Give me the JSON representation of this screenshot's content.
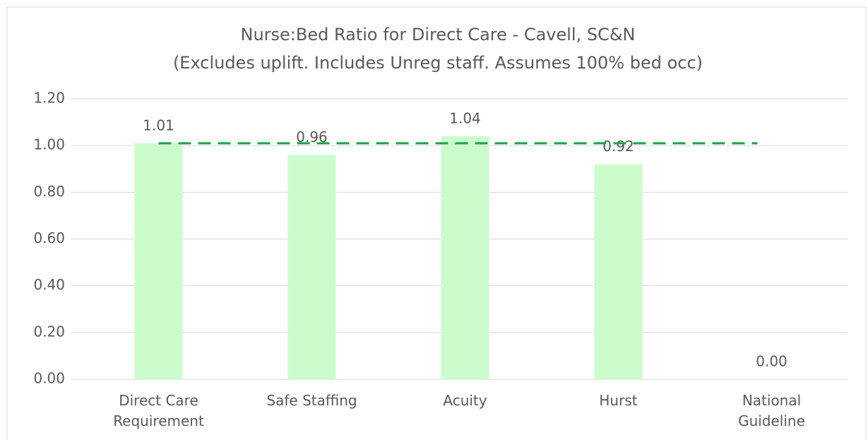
{
  "chart_data": {
    "type": "bar",
    "title": "Nurse:Bed Ratio for Direct Care - Cavell, SC&N",
    "subtitle": "(Excludes uplift. Includes Unreg staff. Assumes 100% bed occ)",
    "categories": [
      "Direct Care Requirement",
      "Safe Staffing",
      "Acuity",
      "Hurst",
      "National Guideline"
    ],
    "values": [
      1.01,
      0.96,
      1.04,
      0.92,
      0
    ],
    "value_labels": [
      "1.01",
      "0.96",
      "1.04",
      "0.92",
      "0.00"
    ],
    "color": "#ccfccc",
    "ylim": [
      0,
      1.2
    ],
    "yticks": [
      {
        "value": 0,
        "label": "0.00"
      },
      {
        "value": 0.2,
        "label": "0.20"
      },
      {
        "value": 0.4,
        "label": "0.40"
      },
      {
        "value": 0.6,
        "label": "0.60"
      },
      {
        "value": 0.8,
        "label": "0.80"
      },
      {
        "value": 1,
        "label": "1.00"
      },
      {
        "value": 1.2,
        "label": "1.20"
      }
    ],
    "grid": true,
    "reference_line": {
      "value": 1.01,
      "color": "#1aa34a",
      "style": "dashed"
    }
  }
}
